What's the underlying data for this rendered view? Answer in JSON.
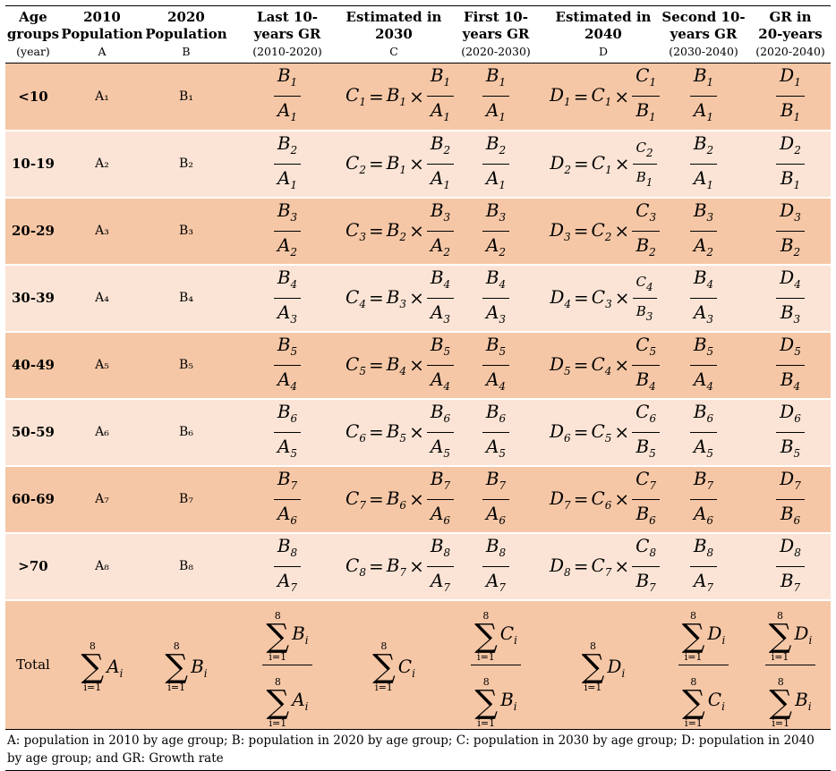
{
  "headers": [
    {
      "l1": "Age",
      "l2": "groups",
      "l3": "(year)"
    },
    {
      "l1": "2010",
      "l2": "Population",
      "l3": "A"
    },
    {
      "l1": "2020",
      "l2": "Population",
      "l3": "B"
    },
    {
      "l1": "Last 10-",
      "l2": "years GR",
      "l3": "(2010-2020)"
    },
    {
      "l1": "Estimated in",
      "l2": "2030",
      "l3": "C"
    },
    {
      "l1": "First 10-",
      "l2": "years GR",
      "l3": "(2020-2030)"
    },
    {
      "l1": "Estimated in",
      "l2": "2040",
      "l3": "D"
    },
    {
      "l1": "Second 10-",
      "l2": "years GR",
      "l3": "(2030-2040)"
    },
    {
      "l1": "GR in",
      "l2": "20-years",
      "l3": "(2020-2040)"
    }
  ],
  "rows": [
    {
      "age": "<10",
      "a": "A₁",
      "b": "B₁"
    },
    {
      "age": "10-19",
      "a": "A₂",
      "b": "B₂"
    },
    {
      "age": "20-29",
      "a": "A₃",
      "b": "B₃"
    },
    {
      "age": "30-39",
      "a": "A₄",
      "b": "B₄"
    },
    {
      "age": "40-49",
      "a": "A₅",
      "b": "B₅"
    },
    {
      "age": "50-59",
      "a": "A₆",
      "b": "B₆"
    },
    {
      "age": "60-69",
      "a": "A₇",
      "b": "B₇"
    },
    {
      "age": ">70",
      "a": "A₈",
      "b": "B₈"
    }
  ],
  "total_label": "Total",
  "footer": "A: population in 2010 by age group; B: population in 2020 by age group; C: population in 2030 by age group; D: population in 2040 by age group; and GR: Growth rate",
  "colors": {
    "dark_row": "#f6c7a6",
    "light_row": "#fbe4d5"
  }
}
